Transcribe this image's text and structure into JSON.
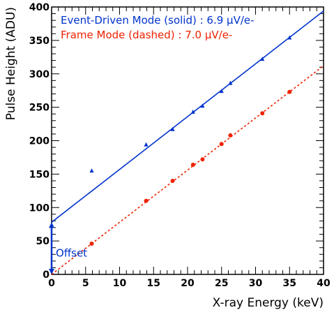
{
  "chart_data": {
    "type": "scatter",
    "title": "",
    "xlabel": "X-ray Energy (keV)",
    "ylabel": "Pulse Height (ADU)",
    "xlim": [
      0,
      40
    ],
    "ylim": [
      0,
      400
    ],
    "grid": false,
    "x_ticks": [
      0,
      5,
      10,
      15,
      20,
      25,
      30,
      35,
      40
    ],
    "x_tick_labels": [
      "0",
      "5",
      "10",
      "15",
      "20",
      "25",
      "30",
      "35",
      "40"
    ],
    "y_ticks": [
      0,
      50,
      100,
      150,
      200,
      250,
      300,
      350,
      400
    ],
    "y_tick_labels": [
      "0",
      "50",
      "100",
      "150",
      "200",
      "250",
      "300",
      "350",
      "400"
    ],
    "legend_position": "top-left",
    "series": [
      {
        "name": "Event-Driven Mode (solid) : 6.9 µV/e-",
        "color": "#0033cc",
        "marker": "triangle",
        "line_style": "solid",
        "fit": {
          "intercept": 78,
          "slope": 7.9
        },
        "points": [
          {
            "x": 5.9,
            "y": 155
          },
          {
            "x": 13.9,
            "y": 194
          },
          {
            "x": 17.8,
            "y": 217
          },
          {
            "x": 20.8,
            "y": 243
          },
          {
            "x": 22.2,
            "y": 252
          },
          {
            "x": 25.0,
            "y": 274
          },
          {
            "x": 26.3,
            "y": 286
          },
          {
            "x": 31.0,
            "y": 322
          },
          {
            "x": 35.0,
            "y": 354
          }
        ]
      },
      {
        "name": "Frame Mode (dashed) : 7.0 µV/e-",
        "color": "#ee2200",
        "marker": "circle",
        "line_style": "dashed",
        "fit": {
          "intercept": 0,
          "slope": 7.8
        },
        "points": [
          {
            "x": 5.9,
            "y": 46
          },
          {
            "x": 13.9,
            "y": 110
          },
          {
            "x": 17.8,
            "y": 140
          },
          {
            "x": 20.8,
            "y": 164
          },
          {
            "x": 22.2,
            "y": 172
          },
          {
            "x": 25.0,
            "y": 195
          },
          {
            "x": 26.3,
            "y": 208
          },
          {
            "x": 31.0,
            "y": 241
          },
          {
            "x": 35.0,
            "y": 273
          }
        ]
      }
    ],
    "annotation": {
      "label": "Offset",
      "color": "#0033cc",
      "x": 0,
      "y_from": 0,
      "y_to": 78
    }
  }
}
